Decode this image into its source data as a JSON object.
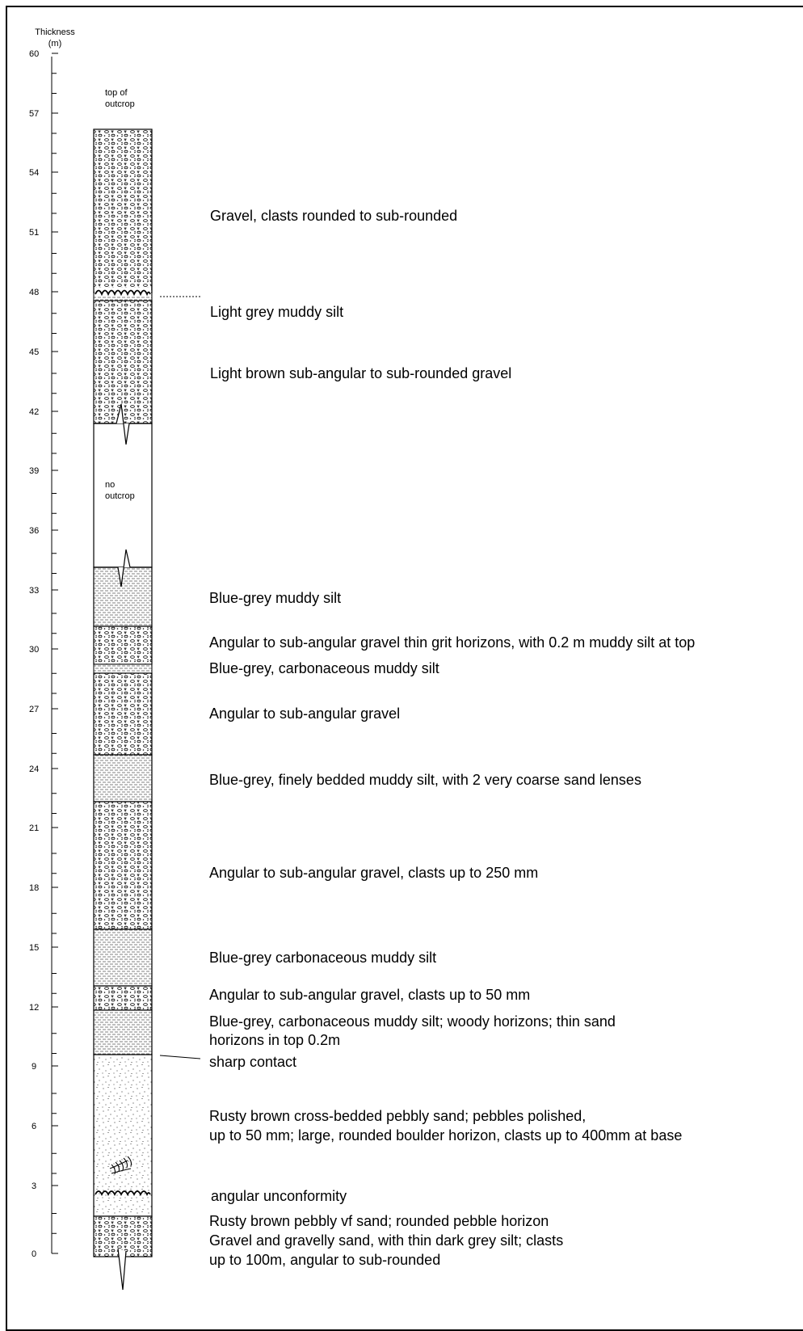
{
  "axis": {
    "title": "Thickness",
    "unit": "(m)",
    "ticks": [
      "60",
      "57",
      "54",
      "51",
      "48",
      "45",
      "42",
      "39",
      "36",
      "33",
      "30",
      "27",
      "24",
      "21",
      "18",
      "15",
      "12",
      "9",
      "6",
      "3",
      "0"
    ]
  },
  "column_notes": {
    "top": [
      "top of",
      "outcrop"
    ],
    "gap": [
      "no",
      "outcrop"
    ]
  },
  "descriptions": [
    {
      "id": "d1",
      "text": "Gravel, clasts rounded to sub-rounded"
    },
    {
      "id": "d2",
      "text": "Light grey muddy silt"
    },
    {
      "id": "d3",
      "text": "Light brown sub-angular to sub-rounded gravel"
    },
    {
      "id": "d4",
      "text": "Blue-grey muddy silt"
    },
    {
      "id": "d5",
      "text": "Angular to sub-angular gravel thin grit horizons, with 0.2 m muddy silt at top"
    },
    {
      "id": "d6",
      "text": "Blue-grey, carbonaceous muddy silt"
    },
    {
      "id": "d7",
      "text": "Angular to sub-angular gravel"
    },
    {
      "id": "d8",
      "text": "Blue-grey, finely bedded muddy silt, with 2 very coarse sand lenses"
    },
    {
      "id": "d9",
      "text": "Angular to sub-angular gravel, clasts up to 250 mm"
    },
    {
      "id": "d10",
      "text": "Blue-grey carbonaceous muddy silt"
    },
    {
      "id": "d11",
      "text": "Angular to sub-angular gravel, clasts up to 50 mm"
    },
    {
      "id": "d12a",
      "text": "Blue-grey, carbonaceous muddy silt; woody horizons; thin sand"
    },
    {
      "id": "d12b",
      "text": "horizons in top 0.2m"
    },
    {
      "id": "d13",
      "text": "sharp contact"
    },
    {
      "id": "d14a",
      "text": "Rusty brown cross-bedded pebbly sand; pebbles polished,"
    },
    {
      "id": "d14b",
      "text": "up to 50 mm; large, rounded boulder horizon, clasts up to 400mm at base"
    },
    {
      "id": "d15",
      "text": "angular unconformity"
    },
    {
      "id": "d16",
      "text": "Rusty brown pebbly vf sand; rounded pebble horizon"
    },
    {
      "id": "d17a",
      "text": "Gravel and gravelly sand, with thin dark grey silt; clasts"
    },
    {
      "id": "d17b",
      "text": "up to 100m, angular to sub-rounded"
    }
  ],
  "layers": [
    {
      "lithology": "gravel",
      "from_m": 48.4,
      "to_m": 56.6
    },
    {
      "lithology": "gravel",
      "from_m": 41.9,
      "to_m": 48.0
    },
    {
      "lithology": "no outcrop",
      "from_m": 34.8,
      "to_m": 41.9
    },
    {
      "lithology": "silt",
      "from_m": 31.8,
      "to_m": 34.8
    },
    {
      "lithology": "gravel",
      "from_m": 29.8,
      "to_m": 31.8
    },
    {
      "lithology": "silt",
      "from_m": 29.2,
      "to_m": 29.8
    },
    {
      "lithology": "gravel",
      "from_m": 25.8,
      "to_m": 29.2
    },
    {
      "lithology": "silt",
      "from_m": 23.4,
      "to_m": 25.8
    },
    {
      "lithology": "gravel",
      "from_m": 16.9,
      "to_m": 23.4
    },
    {
      "lithology": "silt",
      "from_m": 14.0,
      "to_m": 16.9
    },
    {
      "lithology": "gravel",
      "from_m": 12.8,
      "to_m": 14.0
    },
    {
      "lithology": "silt",
      "from_m": 10.5,
      "to_m": 12.8
    },
    {
      "lithology": "sand",
      "from_m": 3.1,
      "to_m": 10.5
    },
    {
      "lithology": "gravel",
      "from_m": 0.0,
      "to_m": 2.0
    }
  ]
}
